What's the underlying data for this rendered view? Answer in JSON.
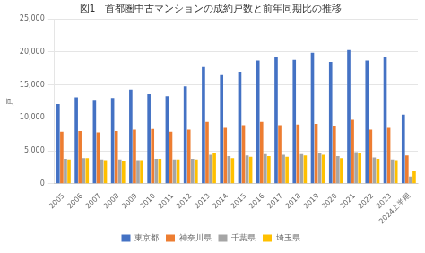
{
  "chart_data": {
    "type": "bar",
    "title": "図1　首都圏中古マンションの成約戸数と前年同期比の推移",
    "ylabel": "戸",
    "categories": [
      "2005",
      "2006",
      "2007",
      "2008",
      "2009",
      "2010",
      "2011",
      "2012",
      "2013",
      "2014",
      "2015",
      "2016",
      "2017",
      "2018",
      "2019",
      "2020",
      "2021",
      "2022",
      "2023",
      "2024上半期"
    ],
    "series": [
      {
        "name": "東京都",
        "color": "#4472c4",
        "values": [
          12100,
          13100,
          12600,
          13000,
          14300,
          13600,
          13300,
          14800,
          17700,
          16500,
          17000,
          18700,
          19300,
          18800,
          19900,
          18500,
          20300,
          18700,
          19300,
          10500
        ]
      },
      {
        "name": "神奈川県",
        "color": "#ed7d31",
        "values": [
          7900,
          8000,
          7800,
          8000,
          8200,
          8300,
          7900,
          8200,
          9400,
          8500,
          8900,
          9400,
          8900,
          9000,
          9100,
          8700,
          9700,
          8200,
          8500,
          4300
        ]
      },
      {
        "name": "千葉県",
        "color": "#a5a5a5",
        "values": [
          3800,
          3900,
          3700,
          3700,
          3600,
          3800,
          3700,
          3800,
          4400,
          4200,
          4300,
          4500,
          4400,
          4500,
          4600,
          4200,
          4800,
          4000,
          3700,
          1100
        ]
      },
      {
        "name": "埼玉県",
        "color": "#ffc000",
        "values": [
          3700,
          3900,
          3600,
          3500,
          3600,
          3800,
          3700,
          3700,
          4600,
          3900,
          4100,
          4200,
          4100,
          4300,
          4400,
          3900,
          4600,
          3800,
          3600,
          1900
        ]
      }
    ],
    "ylim": [
      0,
      25000
    ],
    "yticks": [
      0,
      {
        "value": 5000,
        "label": "5,000"
      },
      {
        "value": 10000,
        "label": "10,000"
      },
      {
        "value": 15000,
        "label": "15,000"
      },
      {
        "value": 20000,
        "label": "20,000"
      },
      {
        "value": 25000,
        "label": "25,000"
      }
    ],
    "grid": true,
    "legend": "bottom"
  }
}
